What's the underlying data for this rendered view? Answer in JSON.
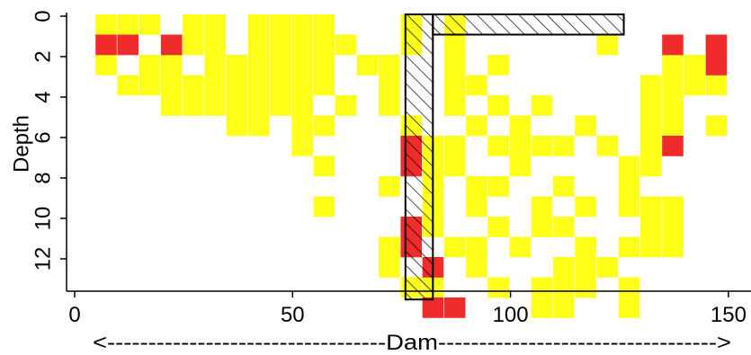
{
  "chart_data": {
    "type": "heatmap",
    "title": "",
    "xlabel": "<----------------------------------Dam---------------------------------->",
    "ylabel": "Depth",
    "xlim": [
      0,
      150
    ],
    "ylim": [
      0,
      13
    ],
    "x_ticks": [
      "0",
      "50",
      "100",
      "150"
    ],
    "y_ticks": [
      "0",
      "2",
      "4",
      "6",
      "8",
      "10",
      "12"
    ],
    "cell_width": 4.8,
    "cell_height": 1,
    "colors": {
      "red": "#ef2b2b",
      "yellow": "#ffff1a",
      "hatch_stroke": "#000000"
    },
    "cells": {
      "yellow": [
        [
          5,
          0
        ],
        [
          10,
          0
        ],
        [
          15,
          0
        ],
        [
          25,
          0
        ],
        [
          30,
          0
        ],
        [
          40,
          0
        ],
        [
          45,
          0
        ],
        [
          50,
          0
        ],
        [
          55,
          0
        ],
        [
          75,
          0
        ],
        [
          85,
          0
        ],
        [
          20,
          1
        ],
        [
          25,
          1
        ],
        [
          30,
          1
        ],
        [
          40,
          1
        ],
        [
          45,
          1
        ],
        [
          50,
          1
        ],
        [
          55,
          1
        ],
        [
          60,
          1
        ],
        [
          75,
          1
        ],
        [
          85,
          1
        ],
        [
          120,
          1
        ],
        [
          145,
          1
        ],
        [
          5,
          2
        ],
        [
          15,
          2
        ],
        [
          20,
          2
        ],
        [
          30,
          2
        ],
        [
          35,
          2
        ],
        [
          40,
          2
        ],
        [
          45,
          2
        ],
        [
          50,
          2
        ],
        [
          55,
          2
        ],
        [
          65,
          2
        ],
        [
          70,
          2
        ],
        [
          85,
          2
        ],
        [
          95,
          2
        ],
        [
          135,
          2
        ],
        [
          140,
          2
        ],
        [
          10,
          3
        ],
        [
          15,
          3
        ],
        [
          20,
          3
        ],
        [
          25,
          3
        ],
        [
          30,
          3
        ],
        [
          35,
          3
        ],
        [
          40,
          3
        ],
        [
          45,
          3
        ],
        [
          50,
          3
        ],
        [
          55,
          3
        ],
        [
          70,
          3
        ],
        [
          85,
          3
        ],
        [
          90,
          3
        ],
        [
          130,
          3
        ],
        [
          135,
          3
        ],
        [
          140,
          3
        ],
        [
          145,
          3
        ],
        [
          20,
          4
        ],
        [
          25,
          4
        ],
        [
          30,
          4
        ],
        [
          35,
          4
        ],
        [
          40,
          4
        ],
        [
          45,
          4
        ],
        [
          50,
          4
        ],
        [
          60,
          4
        ],
        [
          70,
          4
        ],
        [
          85,
          4
        ],
        [
          95,
          4
        ],
        [
          105,
          4
        ],
        [
          130,
          4
        ],
        [
          135,
          4
        ],
        [
          35,
          5
        ],
        [
          40,
          5
        ],
        [
          50,
          5
        ],
        [
          55,
          5
        ],
        [
          75,
          5
        ],
        [
          90,
          5
        ],
        [
          100,
          5
        ],
        [
          115,
          5
        ],
        [
          130,
          5
        ],
        [
          135,
          5
        ],
        [
          145,
          5
        ],
        [
          50,
          6
        ],
        [
          80,
          6
        ],
        [
          85,
          6
        ],
        [
          95,
          6
        ],
        [
          100,
          6
        ],
        [
          105,
          6
        ],
        [
          110,
          6
        ],
        [
          120,
          6
        ],
        [
          130,
          6
        ],
        [
          55,
          7
        ],
        [
          80,
          7
        ],
        [
          85,
          7
        ],
        [
          100,
          7
        ],
        [
          125,
          7
        ],
        [
          130,
          7
        ],
        [
          70,
          8
        ],
        [
          80,
          8
        ],
        [
          90,
          8
        ],
        [
          95,
          8
        ],
        [
          110,
          8
        ],
        [
          125,
          8
        ],
        [
          55,
          9
        ],
        [
          80,
          9
        ],
        [
          90,
          9
        ],
        [
          105,
          9
        ],
        [
          115,
          9
        ],
        [
          125,
          9
        ],
        [
          130,
          9
        ],
        [
          135,
          9
        ],
        [
          80,
          10
        ],
        [
          95,
          10
        ],
        [
          105,
          10
        ],
        [
          110,
          10
        ],
        [
          130,
          10
        ],
        [
          135,
          10
        ],
        [
          70,
          11
        ],
        [
          85,
          11
        ],
        [
          90,
          11
        ],
        [
          100,
          11
        ],
        [
          115,
          11
        ],
        [
          125,
          11
        ],
        [
          130,
          11
        ],
        [
          135,
          11
        ],
        [
          70,
          12
        ],
        [
          90,
          12
        ],
        [
          110,
          12
        ],
        [
          115,
          12
        ],
        [
          120,
          12
        ],
        [
          75,
          13
        ],
        [
          80,
          13
        ],
        [
          95,
          13
        ],
        [
          105,
          13
        ],
        [
          110,
          13
        ],
        [
          115,
          13
        ],
        [
          125,
          13
        ],
        [
          105,
          14
        ],
        [
          110,
          14
        ],
        [
          125,
          14
        ]
      ],
      "red": [
        [
          5,
          1
        ],
        [
          10,
          1
        ],
        [
          20,
          1
        ],
        [
          135,
          1
        ],
        [
          145,
          1
        ],
        [
          145,
          2
        ],
        [
          75,
          6
        ],
        [
          75,
          7
        ],
        [
          135,
          6
        ],
        [
          75,
          10
        ],
        [
          75,
          11
        ],
        [
          80,
          12
        ],
        [
          80,
          14
        ],
        [
          85,
          14
        ]
      ]
    },
    "hatch_regions": [
      {
        "x0": 76.1,
        "x1": 82.4,
        "y0": 0,
        "y1": 14.1
      },
      {
        "x0": 82.4,
        "x1": 126.2,
        "y0": 0,
        "y1": 1.0
      }
    ]
  }
}
